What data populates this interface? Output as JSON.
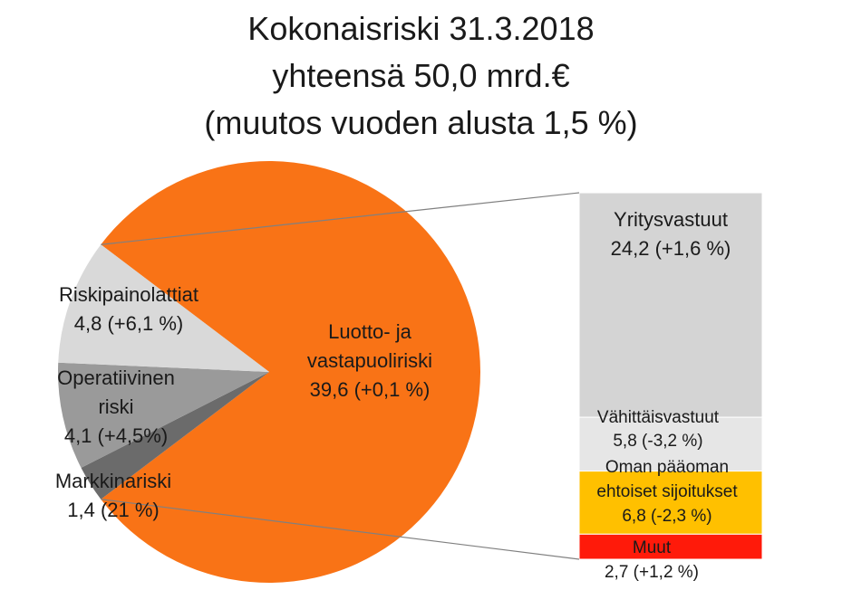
{
  "title": {
    "line1": "Kokonaisriski 31.3.2018",
    "line2": "yhteensä 50,0 mrd.€",
    "line3": "(muutos vuoden alusta 1,5 %)"
  },
  "chart_data": {
    "type": "pie",
    "pie": {
      "slices": [
        {
          "name": "Luotto- ja vastapuoliriski",
          "value": 39.6,
          "label_lines": [
            "Luotto- ja",
            "vastapuoliriski",
            "39,6 (+0,1 %)"
          ],
          "color": "#F97316"
        },
        {
          "name": "Markkinariski",
          "value": 1.4,
          "label_lines": [
            "Markkinariski",
            "1,4 (21 %)"
          ],
          "color": "#6B6B6B"
        },
        {
          "name": "Operatiivinen riski",
          "value": 4.1,
          "label_lines": [
            "Operatiivinen",
            "riski",
            "4,1 (+4,5%)"
          ],
          "color": "#9A9A9A"
        },
        {
          "name": "Riskipainolattiat",
          "value": 4.8,
          "label_lines": [
            "Riskipainolattiat",
            "4,8 (+6,1 %)"
          ],
          "color": "#D9D9D9"
        }
      ]
    },
    "breakdown": {
      "of": "Luotto- ja vastapuoliriski",
      "segments": [
        {
          "name": "Yritysvastuut",
          "value": 24.2,
          "label_lines": [
            "Yritysvastuut",
            "24,2 (+1,6 %)"
          ],
          "color": "#D4D4D4"
        },
        {
          "name": "Vähittäisvastuut",
          "value": 5.8,
          "label_lines": [
            "Vähittäisvastuut",
            "5,8 (-3,2 %)"
          ],
          "color": "#E6E6E6"
        },
        {
          "name": "Oman pääoman ehtoiset sijoitukset",
          "value": 6.8,
          "label_lines": [
            "Oman pääoman",
            "ehtoiset sijoitukset",
            "6,8 (-2,3 %)"
          ],
          "color": "#FFC000"
        },
        {
          "name": "Muut",
          "value": 2.7,
          "label_lines": [
            "Muut",
            "2,7 (+1,2 %)"
          ],
          "color": "#FF1A0A"
        }
      ]
    }
  }
}
